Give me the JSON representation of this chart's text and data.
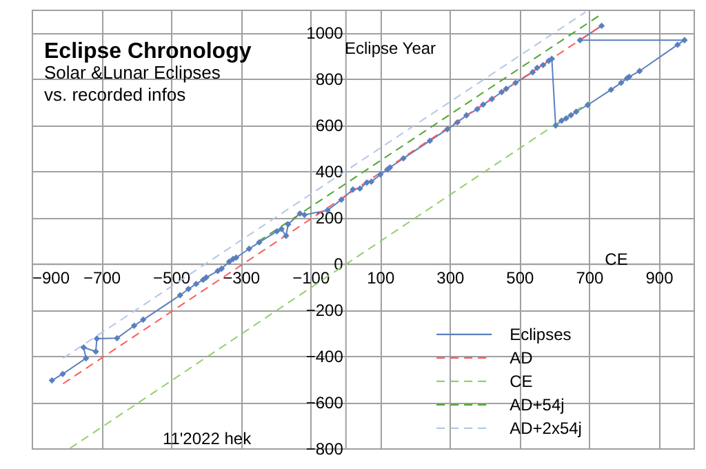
{
  "chart_data": {
    "type": "line",
    "title": "Eclipse Chronology",
    "subtitle": "Solar &Lunar Eclipses\n  vs. recorded infos",
    "xlabel": "CE",
    "ylabel": "Eclipse Year",
    "annotations": [
      "11'2022 hek"
    ],
    "xlim": [
      -900,
      1000
    ],
    "ylim": [
      -800,
      1100
    ],
    "xticks": [
      -900,
      -700,
      -500,
      -300,
      -100,
      100,
      300,
      500,
      700,
      900
    ],
    "yticks": [
      -800,
      -600,
      -400,
      -200,
      0,
      200,
      400,
      600,
      800,
      1000
    ],
    "grid": true,
    "legend": "bottom right",
    "series": [
      {
        "name": "Eclipses",
        "color": "#5a7fbf",
        "marker": "diamond",
        "line_style": "solid",
        "x": [
          -842,
          -811,
          -744,
          -751,
          -716,
          -713,
          -655,
          -606,
          -580,
          -474,
          -450,
          -428,
          -408,
          -399,
          -366,
          -355,
          -333,
          -322,
          -313,
          -276,
          -247,
          -196,
          -183,
          -170,
          -164,
          -130,
          -117,
          -51,
          -11,
          22,
          42,
          62,
          75,
          101,
          121,
          128,
          167,
          243,
          293,
          322,
          348,
          379,
          396,
          421,
          449,
          462,
          489,
          538,
          551,
          568,
          584,
          593,
          604,
          621,
          634,
          648,
          663,
          696,
          763,
          792,
          809,
          815,
          845,
          954,
          974,
          674,
          736
        ],
        "values": [
          -506,
          -478,
          -410,
          -363,
          -381,
          -325,
          -323,
          -269,
          -243,
          -137,
          -110,
          -88,
          -70,
          -60,
          -32,
          -22,
          8,
          20,
          26,
          64,
          92,
          140,
          150,
          120,
          170,
          217,
          211,
          231,
          277,
          321,
          325,
          351,
          355,
          386,
          408,
          416,
          456,
          532,
          582,
          612,
          642,
          669,
          689,
          713,
          743,
          757,
          783,
          829,
          848,
          860,
          878,
          887,
          598,
          619,
          629,
          643,
          658,
          687,
          753,
          783,
          803,
          809,
          834,
          948,
          968,
          968,
          1030
        ]
      },
      {
        "name": "AD",
        "color": "#ff5a5a",
        "marker": "none",
        "line_style": "dashed",
        "x": [
          -810,
          735
        ],
        "values": [
          -520,
          1030
        ]
      },
      {
        "name": "CE",
        "color": "#92d06a",
        "marker": "none",
        "line_style": "dashed",
        "x": [
          -790,
          700
        ],
        "values": [
          -800,
          700
        ]
      },
      {
        "name": "AD+54j",
        "color": "#4ea72e",
        "marker": "none",
        "line_style": "dashed",
        "x": [
          -250,
          730
        ],
        "values": [
          95,
          1075
        ]
      },
      {
        "name": "AD+2x54j",
        "color": "#b4c7e7",
        "marker": "none",
        "line_style": "dashed",
        "x": [
          -810,
          690
        ],
        "values": [
          -410,
          1090
        ]
      }
    ]
  }
}
